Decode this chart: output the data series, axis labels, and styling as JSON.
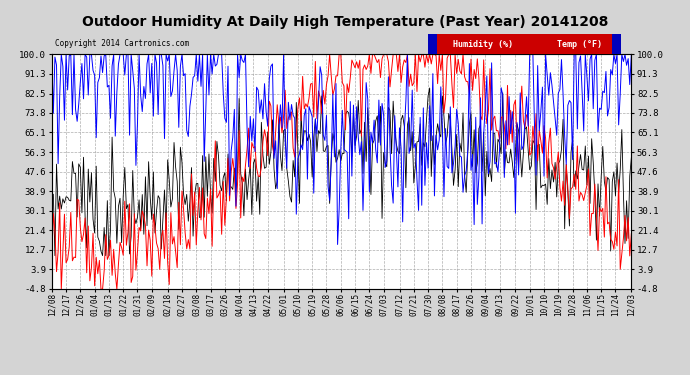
{
  "title": "Outdoor Humidity At Daily High Temperature (Past Year) 20141208",
  "copyright": "Copyright 2014 Cartronics.com",
  "legend_humidity": "Humidity (%)",
  "legend_temp": "Temp (°F)",
  "legend_humidity_bg": "#0000bb",
  "legend_temp_bg": "#cc0000",
  "yticks": [
    100.0,
    91.3,
    82.5,
    73.8,
    65.1,
    56.3,
    47.6,
    38.9,
    30.1,
    21.4,
    12.7,
    3.9,
    -4.8
  ],
  "ylim": [
    -4.8,
    100.0
  ],
  "background_color": "#d4d4d4",
  "plot_bg": "#ffffff",
  "grid_color": "#999999",
  "humidity_color": "#0000ff",
  "temp_color": "#ff0000",
  "black_color": "#000000",
  "title_fontsize": 10,
  "xtick_labels": [
    "12/08",
    "12/17",
    "12/26",
    "01/04",
    "01/13",
    "01/22",
    "01/31",
    "02/09",
    "02/18",
    "02/27",
    "03/08",
    "03/17",
    "03/26",
    "04/04",
    "04/13",
    "04/22",
    "05/01",
    "05/10",
    "05/19",
    "05/28",
    "06/06",
    "06/15",
    "06/24",
    "07/03",
    "07/12",
    "07/21",
    "07/30",
    "08/08",
    "08/17",
    "08/26",
    "09/04",
    "09/13",
    "09/22",
    "10/01",
    "10/10",
    "10/19",
    "10/28",
    "11/06",
    "11/15",
    "11/24",
    "12/03"
  ],
  "num_points": 366
}
